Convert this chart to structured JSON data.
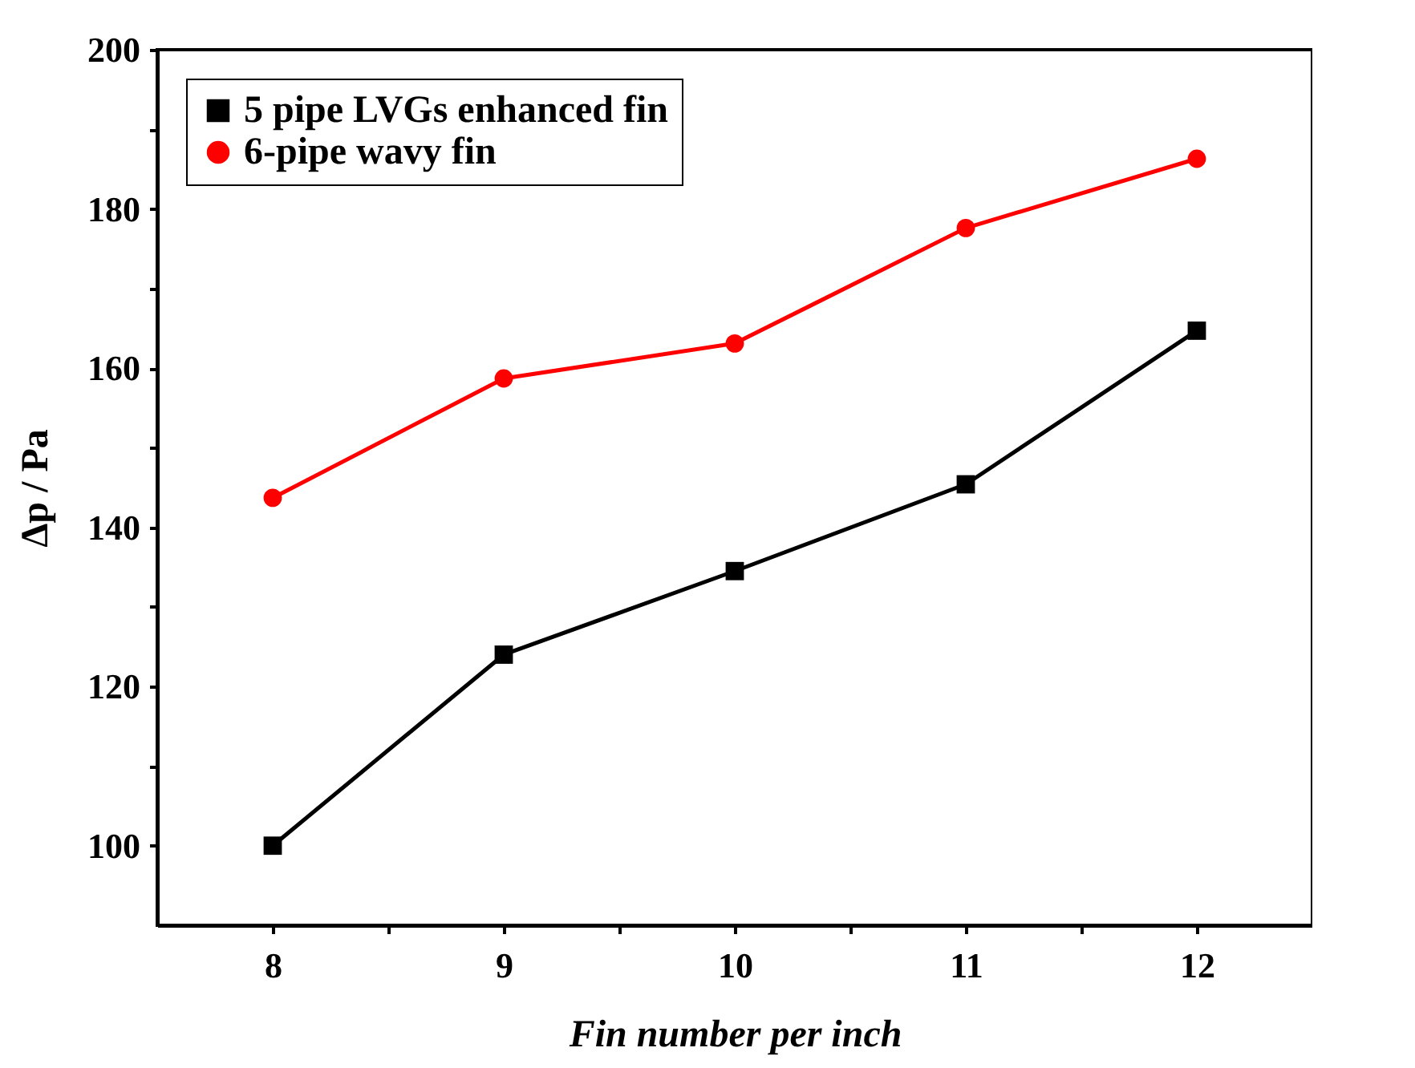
{
  "chart_data": {
    "type": "line",
    "xlabel": "Fin number per inch",
    "ylabel": "Δp / Pa",
    "x": [
      8,
      9,
      10,
      11,
      12
    ],
    "series": [
      {
        "name": "5 pipe LVGs enhanced fin",
        "color": "#000000",
        "marker": "square",
        "values": [
          100,
          124,
          134.5,
          145.4,
          164.7
        ]
      },
      {
        "name": "6-pipe wavy fin",
        "color": "#ff0000",
        "marker": "circle",
        "values": [
          143.7,
          158.7,
          163.1,
          177.6,
          186.3
        ]
      }
    ],
    "xlim": [
      7.5,
      12.5
    ],
    "ylim": [
      90,
      200
    ],
    "xticks": [
      8,
      {
        "value": 8.5,
        "label": null
      },
      9,
      {
        "value": 9.5,
        "label": null
      },
      10,
      {
        "value": 10.5,
        "label": null
      },
      11,
      {
        "value": 11.5,
        "label": null
      },
      12
    ],
    "yticks": [
      100,
      {
        "value": 110,
        "label": null
      },
      120,
      {
        "value": 130,
        "label": null
      },
      140,
      {
        "value": 150,
        "label": null
      },
      160,
      {
        "value": 170,
        "label": null
      },
      180,
      {
        "value": 190,
        "label": null
      },
      200
    ],
    "grid": false,
    "legend": "top left",
    "line_style": "solid"
  }
}
